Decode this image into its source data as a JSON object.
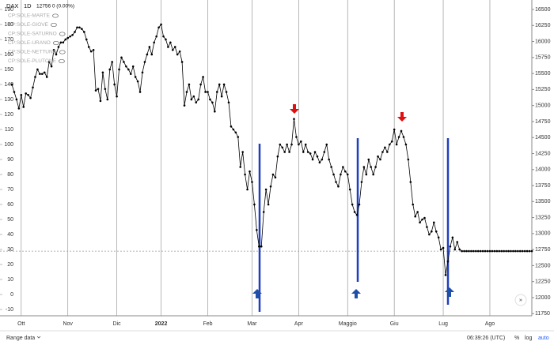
{
  "chart_data": {
    "type": "line",
    "header": {
      "symbol": "DAX",
      "interval": "1D",
      "quote": "12756 0 (0.00%)"
    },
    "indicators": [
      "CP:SOLE-MARTE",
      "CP:SOLE-GIOVE",
      "CP:SOLE-SATURNO",
      "CP:SOLE-URANO",
      "CP:SOLE-NETTUNO",
      "CP:SOLE-PLUTONE"
    ],
    "categories": [
      null,
      null,
      null,
      null,
      "Ott",
      null,
      null,
      null,
      null,
      null,
      null,
      null,
      null,
      null,
      null,
      null,
      null,
      null,
      null,
      null,
      null,
      null,
      null,
      null,
      "Nov",
      null,
      null,
      null,
      null,
      null,
      null,
      null,
      null,
      null,
      null,
      null,
      null,
      null,
      null,
      null,
      null,
      null,
      null,
      null,
      null,
      "Dic",
      null,
      null,
      null,
      null,
      null,
      null,
      null,
      null,
      null,
      null,
      null,
      null,
      null,
      null,
      null,
      null,
      null,
      null,
      "2022",
      null,
      null,
      null,
      null,
      null,
      null,
      null,
      null,
      null,
      null,
      null,
      null,
      null,
      null,
      null,
      null,
      null,
      null,
      null,
      "Feb",
      null,
      null,
      null,
      null,
      null,
      null,
      null,
      null,
      null,
      null,
      null,
      null,
      null,
      null,
      null,
      null,
      null,
      null,
      "Mar",
      null,
      null,
      null,
      null,
      null,
      null,
      null,
      null,
      null,
      null,
      null,
      null,
      null,
      null,
      null,
      null,
      null,
      null,
      null,
      "Apr",
      null,
      null,
      null,
      null,
      null,
      null,
      null,
      null,
      null,
      null,
      null,
      null,
      null,
      null,
      null,
      null,
      null,
      null,
      null,
      null,
      "Maggio",
      null,
      null,
      null,
      null,
      null,
      null,
      null,
      null,
      null,
      null,
      null,
      null,
      null,
      null,
      null,
      null,
      null,
      null,
      null,
      "Giu",
      null,
      null,
      null,
      null,
      null,
      null,
      null,
      null,
      null,
      null,
      null,
      null,
      null,
      null,
      null,
      null,
      null,
      null,
      null,
      null,
      "Lug",
      null,
      null,
      null,
      null,
      null,
      null,
      null,
      null,
      null,
      null,
      null,
      null,
      null,
      null,
      null,
      null,
      null,
      null,
      null,
      "Ago",
      null,
      null,
      null,
      null,
      null,
      null,
      null,
      null,
      null,
      null,
      null,
      null,
      null,
      null,
      null,
      null,
      null,
      null
    ],
    "series": [
      {
        "name": "DAX",
        "color": "#000000",
        "values": [
          140,
          135,
          130,
          124,
          133,
          125,
          134,
          133,
          131,
          138,
          145,
          150,
          147,
          147,
          148,
          145,
          155,
          152,
          163,
          160,
          165,
          168,
          168,
          170,
          171,
          172,
          173,
          175,
          178,
          178,
          177,
          175,
          170,
          165,
          162,
          163,
          136,
          137,
          129,
          148,
          137,
          130,
          150,
          155,
          140,
          132,
          150,
          158,
          155,
          152,
          150,
          147,
          152,
          145,
          142,
          135,
          148,
          155,
          160,
          165,
          160,
          168,
          172,
          178,
          180,
          172,
          170,
          165,
          168,
          163,
          165,
          160,
          162,
          155,
          126,
          135,
          140,
          130,
          132,
          128,
          130,
          140,
          145,
          135,
          135,
          130,
          128,
          122,
          135,
          140,
          132,
          140,
          135,
          128,
          112,
          110,
          108,
          105,
          85,
          95,
          80,
          70,
          82,
          75,
          60,
          43,
          32,
          32,
          55,
          70,
          60,
          72,
          80,
          78,
          92,
          100,
          98,
          95,
          100,
          95,
          100,
          117,
          105,
          100,
          102,
          95,
          100,
          95,
          94,
          90,
          95,
          92,
          88,
          90,
          95,
          100,
          90,
          85,
          80,
          75,
          72,
          80,
          85,
          82,
          80,
          70,
          60,
          55,
          53,
          60,
          75,
          85,
          80,
          90,
          85,
          80,
          85,
          92,
          90,
          95,
          98,
          95,
          100,
          102,
          110,
          100,
          105,
          109,
          105,
          100,
          90,
          75,
          60,
          52,
          55,
          48,
          50,
          51,
          45,
          40,
          42,
          48,
          42,
          38,
          30,
          31,
          13,
          22,
          32,
          38,
          30,
          35,
          30,
          28.9,
          28.9,
          28.9,
          28.9,
          28.9,
          28.9,
          28.9,
          28.9,
          28.9,
          28.9,
          28.9,
          28.9,
          28.9,
          28.9,
          28.9,
          28.9,
          28.9,
          28.9,
          28.9,
          28.9,
          28.9,
          28.9,
          28.9,
          28.9,
          28.9,
          28.9,
          28.9,
          28.9,
          28.9,
          28.9,
          28.9
        ]
      }
    ],
    "price_line": 28.9,
    "ylim": [
      -14.2,
      196.3
    ],
    "yticks": [
      -10,
      0,
      10,
      20,
      30,
      40,
      50,
      60,
      70,
      80,
      90,
      100,
      110,
      120,
      130,
      140,
      150,
      160,
      170,
      180,
      190
    ],
    "y2lim": [
      11716,
      16648
    ],
    "y2ticks": [
      11750,
      12000,
      12250,
      12500,
      12750,
      13000,
      13250,
      13500,
      13750,
      14000,
      14250,
      14500,
      14750,
      15000,
      15250,
      15500,
      15750,
      16000,
      16250,
      16500
    ],
    "grid": "vertical",
    "footer": {
      "range": "Range data",
      "time": "06:39:26 (UTC)",
      "percent": "%",
      "log": "log",
      "auto": "auto"
    }
  }
}
